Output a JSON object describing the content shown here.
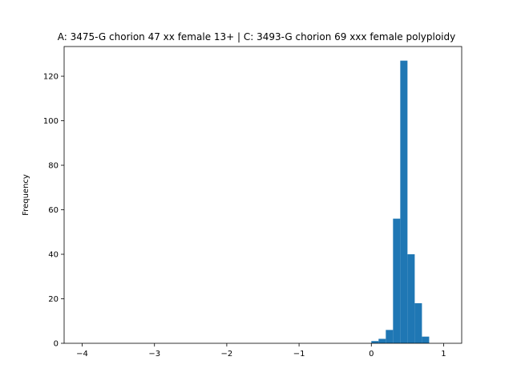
{
  "chart_data": {
    "type": "bar",
    "title": "A: 3475-G chorion 47 xx female 13+ | C: 3493-G chorion 69 xxx female polyploidy",
    "xlabel": "",
    "ylabel": "Frequency",
    "xlim": [
      -4.25,
      1.25
    ],
    "ylim": [
      0,
      133.35
    ],
    "xticks": [
      -4,
      -3,
      -2,
      -1,
      0,
      1
    ],
    "xtick_labels": [
      "−4",
      "−3",
      "−2",
      "−1",
      "0",
      "1"
    ],
    "yticks": [
      0,
      20,
      40,
      60,
      80,
      100,
      120
    ],
    "ytick_labels": [
      "0",
      "20",
      "40",
      "60",
      "80",
      "100",
      "120"
    ],
    "bar_color": "#1f77b4",
    "grid": false,
    "bins": [
      {
        "x0": 0.0,
        "x1": 0.1,
        "count": 1
      },
      {
        "x0": 0.1,
        "x1": 0.2,
        "count": 2
      },
      {
        "x0": 0.2,
        "x1": 0.3,
        "count": 6
      },
      {
        "x0": 0.3,
        "x1": 0.4,
        "count": 56
      },
      {
        "x0": 0.4,
        "x1": 0.5,
        "count": 127
      },
      {
        "x0": 0.5,
        "x1": 0.6,
        "count": 40
      },
      {
        "x0": 0.6,
        "x1": 0.7,
        "count": 18
      },
      {
        "x0": 0.7,
        "x1": 0.8,
        "count": 3
      }
    ]
  }
}
